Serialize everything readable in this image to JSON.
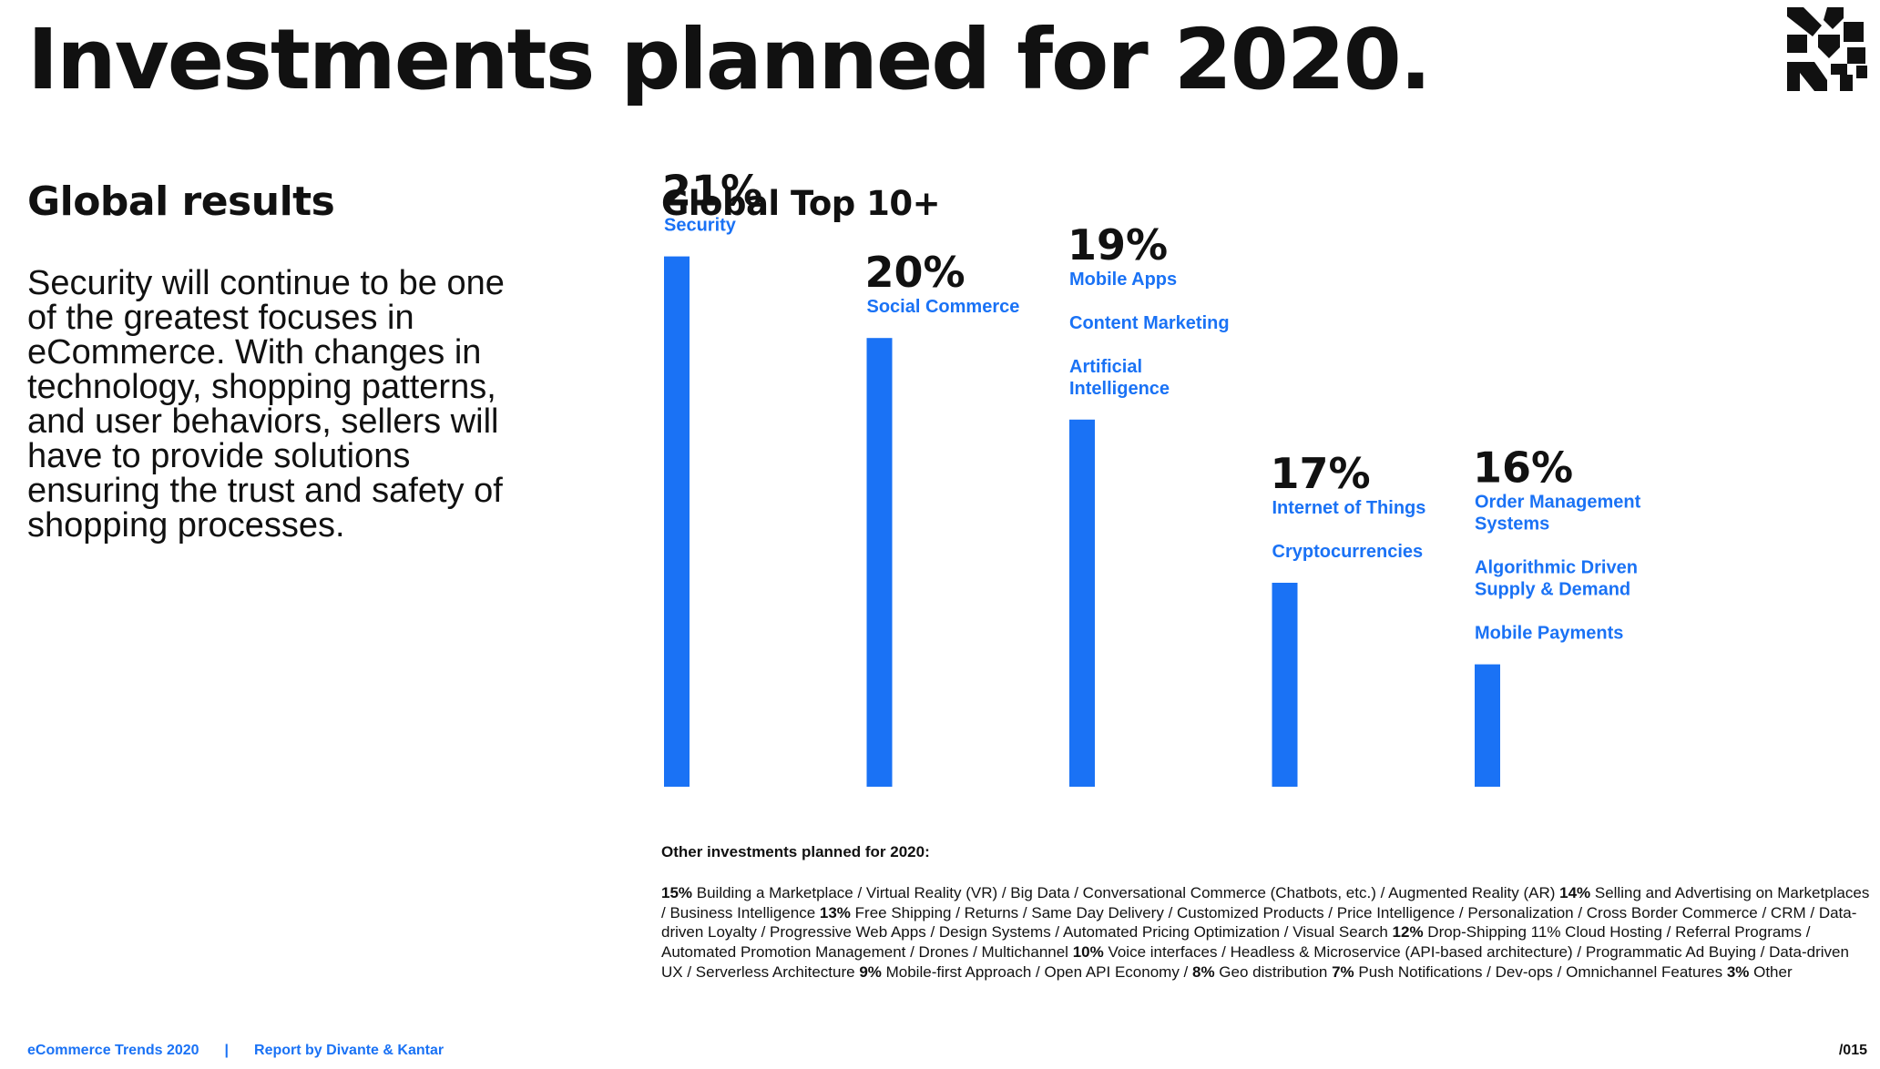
{
  "page": {
    "title": "Investments planned for 2020.",
    "page_number": "/015"
  },
  "left": {
    "heading": "Global results",
    "text": "Security will continue to be one of the greatest focuses in eCommerce. With changes in technology, shopping patterns, and user behaviors, sellers will have to provide solutions ensuring the trust and safety of shopping processes."
  },
  "footer": {
    "left": "eCommerce Trends 2020",
    "separator": "|",
    "right": "Report by Divante & Kantar"
  },
  "brand": {
    "logo_icon": "divante-logo-icon",
    "accent_color": "#1a72f5",
    "text_color": "#111111"
  },
  "chart_data": {
    "type": "bar",
    "title": "Global Top 10+",
    "categories": [
      "21%",
      "20%",
      "19%",
      "17%",
      "16%"
    ],
    "values": [
      21,
      20,
      19,
      17,
      16
    ],
    "value_labels": [
      "21%",
      "20%",
      "19%",
      "17%",
      "16%"
    ],
    "items": [
      [
        "Security"
      ],
      [
        "Social Commerce"
      ],
      [
        "Mobile Apps",
        "Content Marketing",
        "Artificial Intelligence"
      ],
      [
        "Internet of Things",
        "Cryptocurrencies"
      ],
      [
        "Order Management Systems",
        "Algorithmic Driven Supply & Demand",
        "Mobile Payments"
      ]
    ],
    "grid": false,
    "legend": "none",
    "bar_color": "#1a72f5"
  },
  "other": {
    "heading": "Other investments planned for 2020:",
    "segments": [
      {
        "b": "15%",
        "t": " Building a Marketplace / Virtual Reality (VR) / Big Data / Conversational Commerce (Chatbots, etc.) / Augmented Reality (AR) "
      },
      {
        "b": "14%",
        "t": " Selling and Advertising on Marketplaces / Business Intelligence "
      },
      {
        "b": "13%",
        "t": " Free Shipping / Returns / Same Day Delivery / Customized Products / Price Intelligence / Personalization / Cross Border Commerce / CRM / Data-driven Loyalty / Progressive Web Apps / Design Systems / Automated Pricing Optimization / Visual Search "
      },
      {
        "b": "12%",
        "t": " Drop-Shipping 11% Cloud Hosting / Referral Programs / Automated Promotion Management / Drones / Multichannel "
      },
      {
        "b": "10%",
        "t": " Voice interfaces / Headless & Microservice (API-based architecture) / Programmatic Ad Buying / Data-driven UX / Serverless Architecture "
      },
      {
        "b": "9%",
        "t": " Mobile-first Approach / Open API Economy / "
      },
      {
        "b": "8%",
        "t": " Geo distribution "
      },
      {
        "b": "7%",
        "t": " Push Notifications / Dev-ops / Omnichannel Features "
      },
      {
        "b": "3%",
        "t": " Other"
      }
    ]
  }
}
